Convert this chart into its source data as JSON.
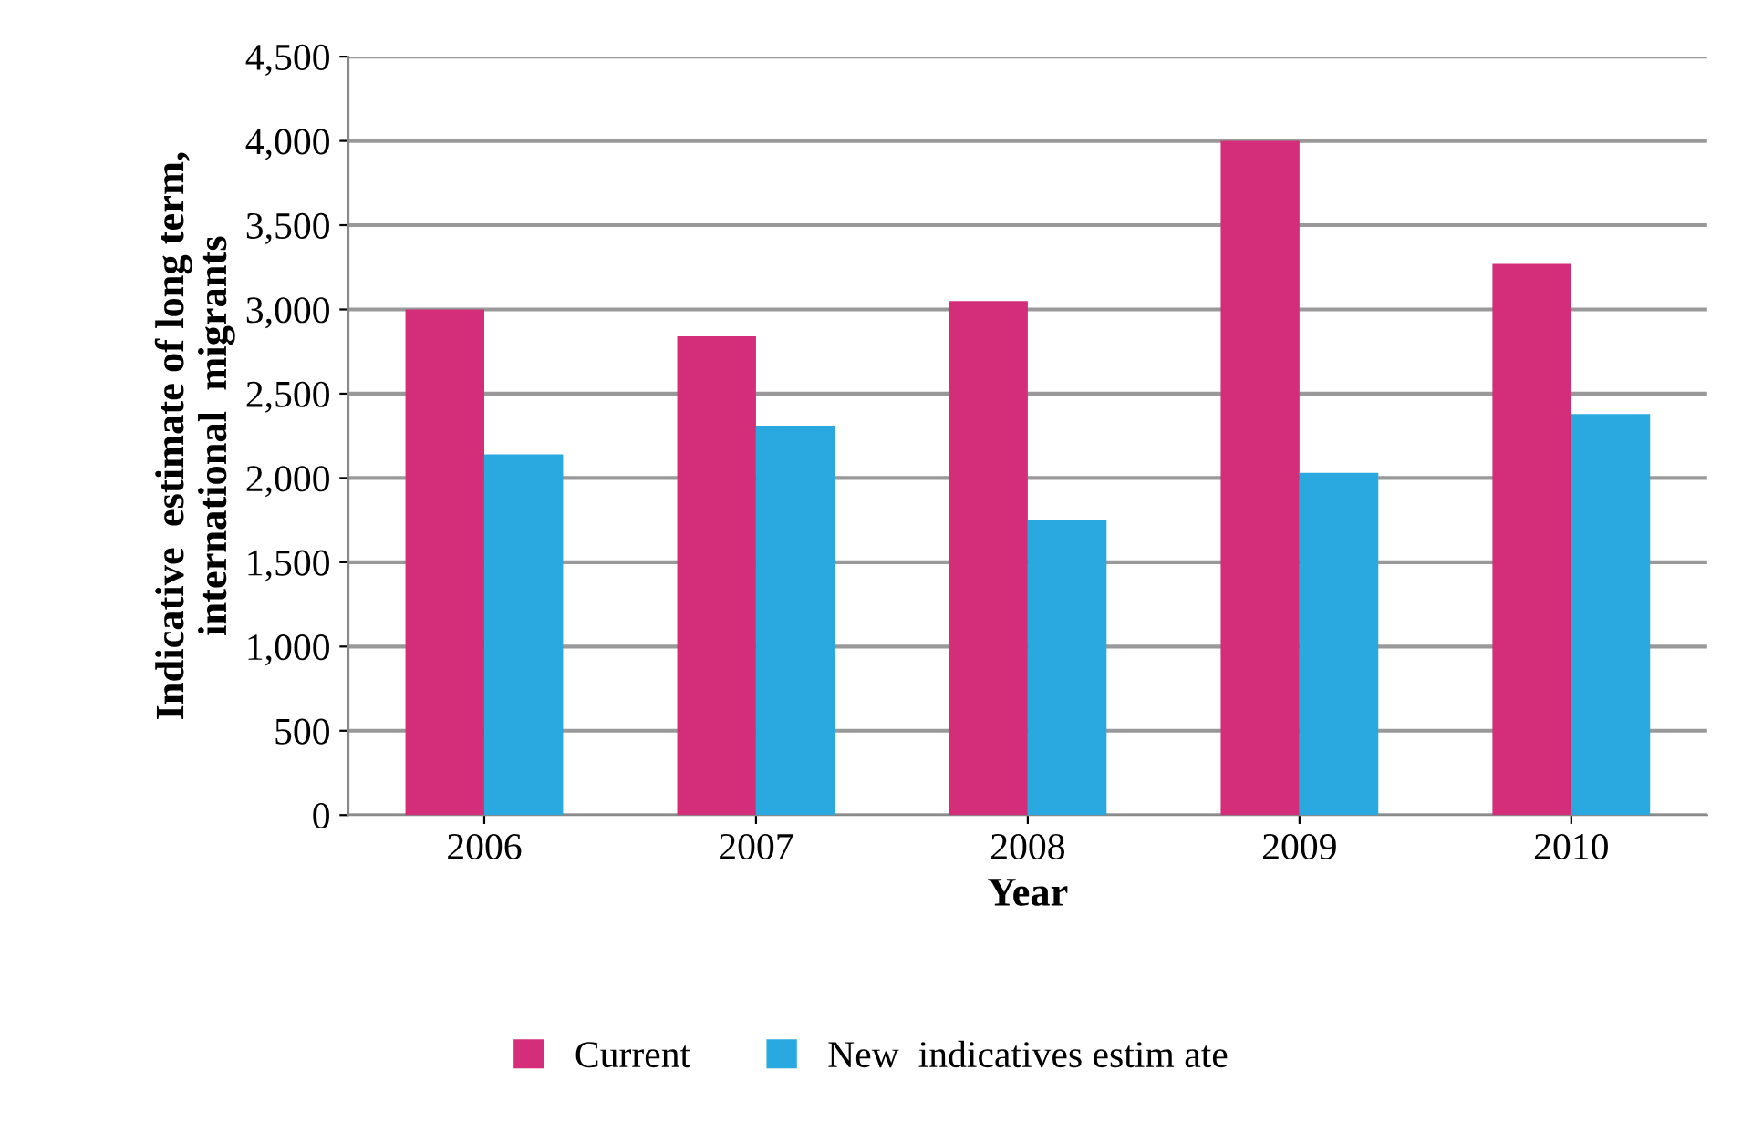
{
  "chart_data": {
    "type": "bar",
    "xlabel": "Year",
    "ylabel": "Indicative  estimate of long term,\ninternational  migrants",
    "categories": [
      "2006",
      "2007",
      "2008",
      "2009",
      "2010"
    ],
    "series": [
      {
        "name": "Current",
        "color": "#d42e7b",
        "values": [
          3000,
          2840,
          3050,
          4000,
          3270
        ]
      },
      {
        "name": "New  indicatives estim ate",
        "color": "#29a9e0",
        "values": [
          2140,
          2310,
          1750,
          2030,
          2380
        ]
      }
    ],
    "ylim": [
      0,
      4500
    ],
    "yticks": [
      {
        "value": 0,
        "label": "0"
      },
      {
        "value": 500,
        "label": "500"
      },
      {
        "value": 1000,
        "label": "1,000"
      },
      {
        "value": 1500,
        "label": "1,500"
      },
      {
        "value": 2000,
        "label": "2,000"
      },
      {
        "value": 2500,
        "label": "2,500"
      },
      {
        "value": 3000,
        "label": "3,000"
      },
      {
        "value": 3500,
        "label": "3,500"
      },
      {
        "value": 4000,
        "label": "4,000"
      },
      {
        "value": 4500,
        "label": "4,500"
      }
    ],
    "grid": "y",
    "legend": "bottom"
  }
}
